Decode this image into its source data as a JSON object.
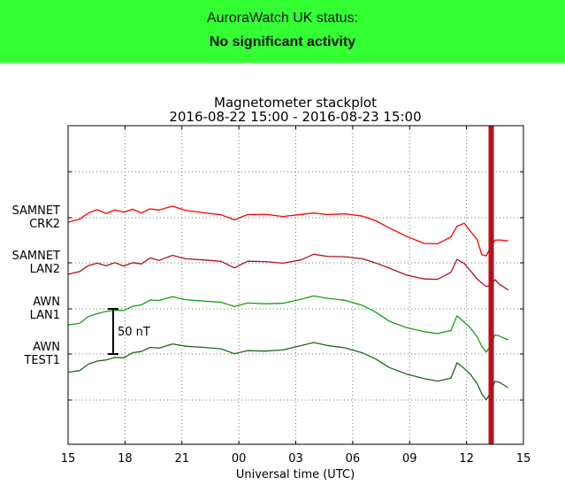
{
  "banner": {
    "label": "AuroraWatch UK status:",
    "status": "No significant activity",
    "color": "#33ff33"
  },
  "chart_data": {
    "type": "line",
    "title": "Magnetometer stackplot",
    "subtitle": "2016-08-22 15:00 - 2016-08-23 15:00",
    "xlabel": "Universal time (UTC)",
    "xlim": [
      0,
      24
    ],
    "x_tick_labels": [
      "15",
      "18",
      "21",
      "00",
      "03",
      "06",
      "09",
      "12",
      "15"
    ],
    "grid": true,
    "scale_bar_label": "50 nT",
    "scale_bar_nT": 50,
    "marker_band_hour": 22.3,
    "marker_band_color": "#b5121b",
    "hours": [
      0,
      0.6,
      1.07,
      1.54,
      2.0,
      2.47,
      2.94,
      3.4,
      3.87,
      4.33,
      4.8,
      5.5,
      6.2,
      7.13,
      8.06,
      8.76,
      9.46,
      10.39,
      11.32,
      12.26,
      12.95,
      13.65,
      14.59,
      15.52,
      16.22,
      16.92,
      17.85,
      18.78,
      19.48,
      20.18,
      20.5,
      20.88,
      21.2,
      21.57,
      21.8,
      22.04,
      22.27,
      22.5,
      22.74,
      23.2
    ],
    "series": [
      {
        "name": "SAMNET CRK2",
        "line1": "SAMNET",
        "line2": "CRK2",
        "color": "#ff0000",
        "values_nT": [
          -5,
          -1,
          6,
          9,
          4,
          8,
          6,
          10,
          6,
          10,
          8,
          12,
          8,
          6,
          4,
          -2,
          3,
          3,
          1,
          4,
          6,
          4,
          4,
          1,
          -4,
          -11,
          -20,
          -28,
          -29,
          -22,
          -10,
          -6,
          -14,
          -24,
          -41,
          -43,
          -33,
          -25,
          -24,
          -25
        ]
      },
      {
        "name": "SAMNET LAN2",
        "line1": "SAMNET",
        "line2": "LAN2",
        "color": "#b0101c",
        "values_nT": [
          -12,
          -9,
          -3,
          -1,
          -4,
          0,
          -3,
          1,
          -1,
          5,
          2,
          8,
          5,
          4,
          2,
          -6,
          1,
          1,
          0,
          4,
          10,
          7,
          6,
          4,
          0,
          -5,
          -13,
          -18,
          -19,
          -11,
          4,
          0,
          -8,
          -18,
          -23,
          -27,
          -25,
          -18,
          -23,
          -30
        ]
      },
      {
        "name": "AWN LAN1",
        "line1": "AWN",
        "line2": "LAN1",
        "color": "#14a014",
        "values_nT": [
          -17,
          -16,
          -9,
          -6,
          -3,
          -1,
          -1,
          3,
          4,
          9,
          9,
          14,
          11,
          9,
          7,
          2,
          6,
          6,
          7,
          11,
          14,
          11,
          9,
          4,
          -3,
          -13,
          -21,
          -26,
          -28,
          -24,
          -7,
          -14,
          -21,
          -32,
          -42,
          -48,
          -40,
          -28,
          -30,
          -35
        ]
      },
      {
        "name": "AWN TEST1",
        "line1": "AWN",
        "line2": "TEST1",
        "color": "#1a6a1a",
        "values_nT": [
          -20,
          -19,
          -12,
          -8,
          -6,
          -3,
          -4,
          1,
          2,
          7,
          7,
          12,
          9,
          7,
          5,
          0,
          4,
          4,
          5,
          9,
          12,
          9,
          7,
          2,
          -5,
          -15,
          -23,
          -28,
          -30,
          -26,
          -9,
          -16,
          -23,
          -34,
          -44,
          -50,
          -42,
          -30,
          -32,
          -38
        ]
      }
    ]
  }
}
